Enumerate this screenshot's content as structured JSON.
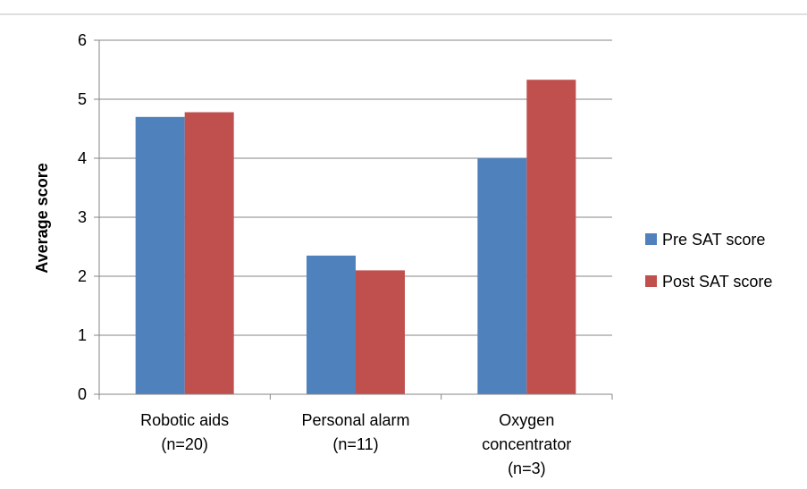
{
  "chart_data": {
    "type": "bar",
    "title": "",
    "xlabel": "",
    "ylabel": "Average score",
    "ylim": [
      0,
      6
    ],
    "yticks": [
      0,
      1,
      2,
      3,
      4,
      5,
      6
    ],
    "grid": true,
    "legend_position": "right",
    "categories": [
      [
        "Robotic aids",
        "(n=20)"
      ],
      [
        "Personal alarm",
        "(n=11)"
      ],
      [
        "Oxygen",
        "concentrator",
        "(n=3)"
      ]
    ],
    "series": [
      {
        "name": "Pre SAT score",
        "color": "#4F81BD",
        "values": [
          4.7,
          2.35,
          4.0
        ]
      },
      {
        "name": "Post SAT score",
        "color": "#C0504D",
        "values": [
          4.78,
          2.1,
          5.33
        ]
      }
    ]
  }
}
